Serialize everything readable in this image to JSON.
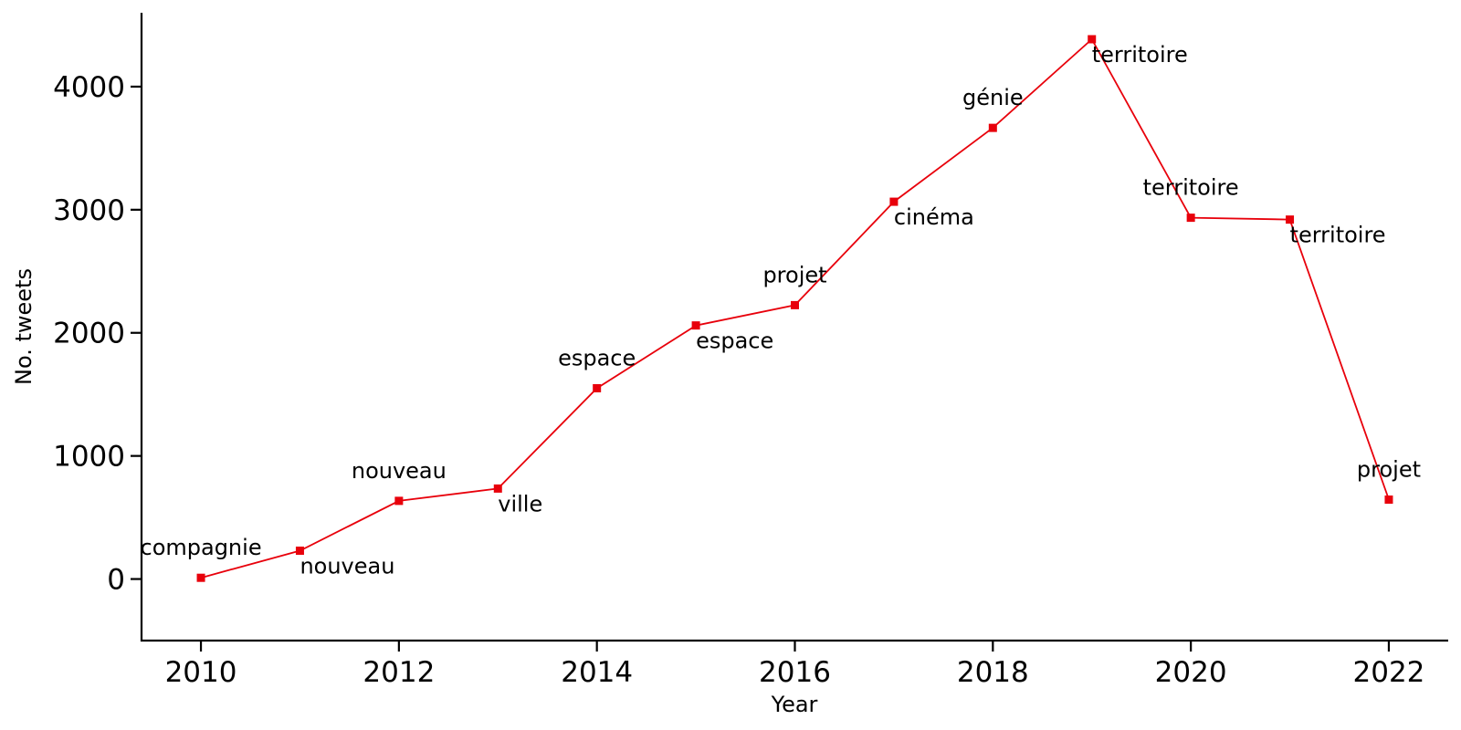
{
  "chart_data": {
    "type": "line",
    "xlabel": "Year",
    "ylabel": "No. tweets",
    "xlim": [
      2009.4,
      2022.6
    ],
    "ylim": [
      -500,
      4600
    ],
    "x_ticks": [
      2010,
      2012,
      2014,
      2016,
      2018,
      2020,
      2022
    ],
    "y_ticks": [
      0,
      1000,
      2000,
      3000,
      4000
    ],
    "grid": false,
    "legend": "none",
    "color": "#e8000b",
    "series": [
      {
        "x": [
          2010,
          2011,
          2012,
          2013,
          2014,
          2015,
          2016,
          2017,
          2018,
          2019,
          2020,
          2021,
          2022
        ],
        "values": [
          10,
          230,
          635,
          735,
          1550,
          2060,
          2225,
          3065,
          3665,
          4385,
          2935,
          2920,
          645
        ]
      }
    ],
    "annotations": [
      {
        "x": 2010,
        "text": "compagnie",
        "position": "above"
      },
      {
        "x": 2011,
        "text": "nouveau",
        "position": "below"
      },
      {
        "x": 2012,
        "text": "nouveau",
        "position": "above"
      },
      {
        "x": 2013,
        "text": "ville",
        "position": "below"
      },
      {
        "x": 2014,
        "text": "espace",
        "position": "above"
      },
      {
        "x": 2015,
        "text": "espace",
        "position": "below"
      },
      {
        "x": 2016,
        "text": "projet",
        "position": "above"
      },
      {
        "x": 2017,
        "text": "cinéma",
        "position": "below"
      },
      {
        "x": 2018,
        "text": "génie",
        "position": "above"
      },
      {
        "x": 2019,
        "text": "territoire",
        "position": "below"
      },
      {
        "x": 2020,
        "text": "territoire",
        "position": "above"
      },
      {
        "x": 2021,
        "text": "territoire",
        "position": "below"
      },
      {
        "x": 2022,
        "text": "projet",
        "position": "above"
      }
    ]
  }
}
